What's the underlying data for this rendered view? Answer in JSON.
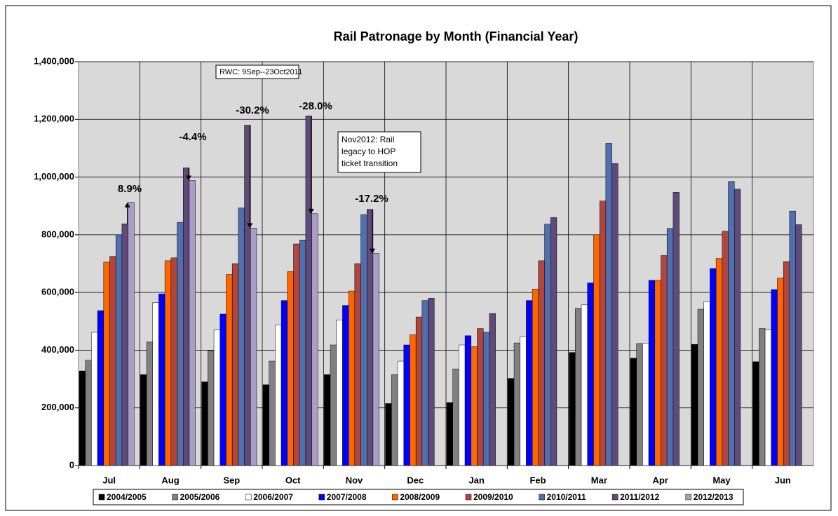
{
  "chart_data": {
    "type": "bar",
    "title": "Rail Patronage by Month (Financial Year)",
    "categories": [
      "Jul",
      "Aug",
      "Sep",
      "Oct",
      "Nov",
      "Dec",
      "Jan",
      "Feb",
      "Mar",
      "Apr",
      "May",
      "Jun"
    ],
    "series": [
      {
        "name": "2004/2005",
        "color": "#000000",
        "values": [
          328000,
          315000,
          290000,
          280000,
          315000,
          215000,
          218000,
          302000,
          392000,
          372000,
          420000,
          360000
        ]
      },
      {
        "name": "2005/2006",
        "color": "#808080",
        "values": [
          365000,
          428000,
          398000,
          362000,
          418000,
          315000,
          335000,
          425000,
          545000,
          423000,
          542000,
          475000
        ]
      },
      {
        "name": "2006/2007",
        "color": "#ffffff",
        "values": [
          462000,
          565000,
          470000,
          487000,
          505000,
          362000,
          418000,
          447000,
          557000,
          423000,
          568000,
          470000
        ]
      },
      {
        "name": "2007/2008",
        "color": "#0000ff",
        "values": [
          537000,
          595000,
          525000,
          572000,
          555000,
          418000,
          450000,
          572000,
          633000,
          642000,
          683000,
          610000
        ]
      },
      {
        "name": "2008/2009",
        "color": "#ff6600",
        "values": [
          705000,
          710000,
          662000,
          672000,
          605000,
          453000,
          412000,
          612000,
          800000,
          642000,
          718000,
          650000
        ]
      },
      {
        "name": "2009/2010",
        "color": "#b0463e",
        "values": [
          725000,
          720000,
          700000,
          768000,
          700000,
          515000,
          475000,
          710000,
          917000,
          728000,
          812000,
          707000
        ]
      },
      {
        "name": "2010/2011",
        "color": "#4f6fae",
        "values": [
          800000,
          843000,
          893000,
          782000,
          870000,
          572000,
          462000,
          837000,
          1117000,
          822000,
          985000,
          882000
        ]
      },
      {
        "name": "2011/2012",
        "color": "#604a7b",
        "values": [
          838000,
          1032000,
          1180000,
          1212000,
          888000,
          580000,
          527000,
          860000,
          1047000,
          947000,
          958000,
          835000
        ]
      },
      {
        "name": "2012/2013",
        "color": "#a89ec8",
        "values": [
          912000,
          988000,
          823000,
          873000,
          735000,
          null,
          null,
          null,
          null,
          null,
          null,
          null
        ]
      }
    ],
    "ylim": [
      0,
      1400000
    ],
    "yticks": [
      0,
      {
        "value": 200000,
        "label": "200,000"
      },
      {
        "value": 400000,
        "label": "400,000"
      },
      {
        "value": 600000,
        "label": "600,000"
      },
      {
        "value": 800000,
        "label": "800,000"
      },
      {
        "value": 1000000,
        "label": "1,000,000"
      },
      {
        "value": 1200000,
        "label": "1,200,000"
      },
      {
        "value": 1400000,
        "label": "1,400,000"
      }
    ],
    "grid": true,
    "legend": "bottom",
    "annotations": [
      "8.9%",
      "-4.4%",
      "-30.2%",
      "-28.0%",
      "-17.2%"
    ],
    "notes": [
      "RWC: 9Sep--23Oct2011",
      [
        "Nov2012: Rail",
        "legacy to HOP",
        "ticket transition"
      ]
    ]
  }
}
